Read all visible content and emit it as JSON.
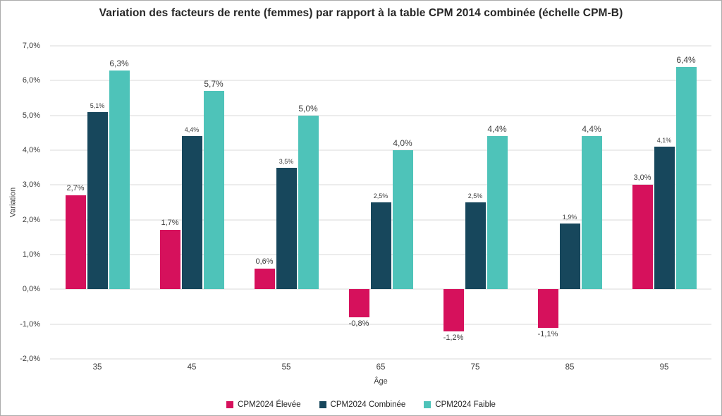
{
  "chart_data": {
    "type": "bar",
    "title": "Variation des facteurs de rente (femmes) par rapport à la table CPM 2014 combinée (échelle CPM-B)",
    "xlabel": "Âge",
    "ylabel": "Variation",
    "ylim": [
      -2,
      7
    ],
    "grid": true,
    "legend_position": "bottom",
    "categories": [
      "35",
      "45",
      "55",
      "65",
      "75",
      "85",
      "95"
    ],
    "series": [
      {
        "name": "CPM2024 Élevée",
        "color": "#D6115C",
        "values": [
          2.7,
          1.7,
          0.6,
          -0.8,
          -1.2,
          -1.1,
          3.0
        ],
        "labels": [
          "2,7%",
          "1,7%",
          "0,6%",
          "-0,8%",
          "-1,2%",
          "-1,1%",
          "3,0%"
        ]
      },
      {
        "name": "CPM2024 Combinée",
        "color": "#17475C",
        "values": [
          5.1,
          4.4,
          3.5,
          2.5,
          2.5,
          1.9,
          4.1
        ],
        "labels": [
          "5,1%",
          "4,4%",
          "3,5%",
          "2,5%",
          "2,5%",
          "1,9%",
          "4,1%"
        ]
      },
      {
        "name": "CPM2024 Faible",
        "color": "#4EC3B9",
        "values": [
          6.3,
          5.7,
          5.0,
          4.0,
          4.4,
          4.4,
          6.4
        ],
        "labels": [
          "6,3%",
          "5,7%",
          "5,0%",
          "4,0%",
          "4,4%",
          "4,4%",
          "6,4%"
        ]
      }
    ],
    "yticks": [
      {
        "value": -2,
        "label": "-2,0%"
      },
      {
        "value": -1,
        "label": "-1,0%"
      },
      {
        "value": 0,
        "label": "0,0%"
      },
      {
        "value": 1,
        "label": "1,0%"
      },
      {
        "value": 2,
        "label": "2,0%"
      },
      {
        "value": 3,
        "label": "3,0%"
      },
      {
        "value": 4,
        "label": "4,0%"
      },
      {
        "value": 5,
        "label": "5,0%"
      },
      {
        "value": 6,
        "label": "6,0%"
      },
      {
        "value": 7,
        "label": "7,0%"
      }
    ]
  }
}
